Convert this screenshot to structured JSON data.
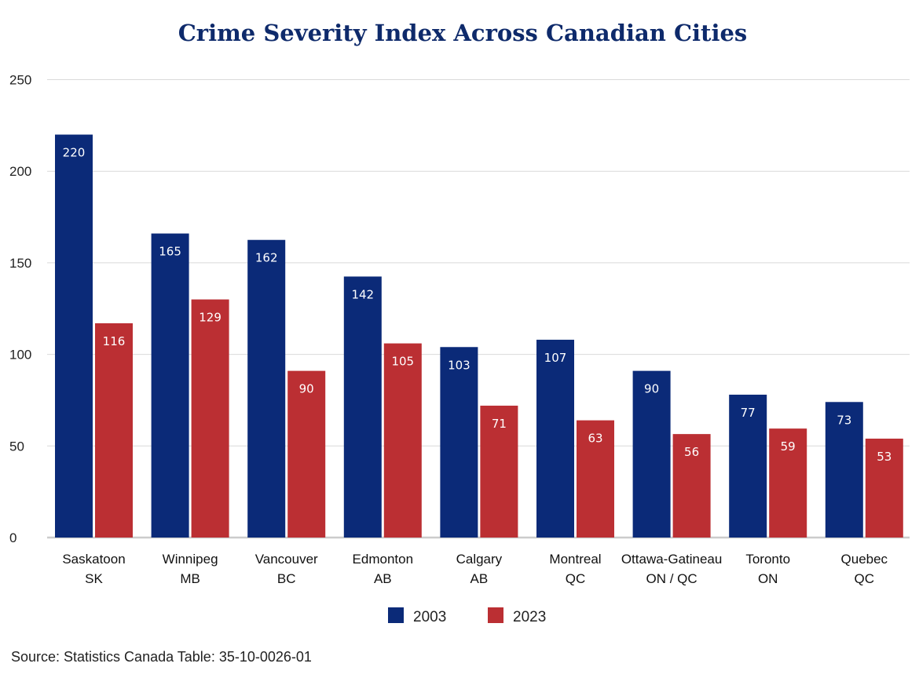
{
  "chart_data": {
    "type": "bar",
    "title": "Crime Severity Index Across Canadian Cities",
    "categories": [
      [
        "Saskatoon",
        "SK"
      ],
      [
        "Winnipeg",
        "MB"
      ],
      [
        "Vancouver",
        "BC"
      ],
      [
        "Edmonton",
        "AB"
      ],
      [
        "Calgary",
        "AB"
      ],
      [
        "Montreal",
        "QC"
      ],
      [
        "Ottawa-Gatineau",
        "ON / QC"
      ],
      [
        "Toronto",
        "ON"
      ],
      [
        "Quebec",
        "QC"
      ]
    ],
    "series": [
      {
        "name": "2003",
        "color": "#0b2a78",
        "values": [
          220,
          165,
          162,
          142,
          103,
          107,
          90,
          77,
          73
        ],
        "bar_heights": [
          220,
          166,
          162.5,
          142.5,
          104,
          108,
          91,
          78,
          74
        ]
      },
      {
        "name": "2023",
        "color": "#bb2f33",
        "values": [
          116,
          129,
          90,
          105,
          71,
          63,
          56,
          59,
          53
        ],
        "bar_heights": [
          117,
          130,
          91,
          106,
          72,
          64,
          56.5,
          59.5,
          54
        ]
      }
    ],
    "yticks": [
      0,
      50,
      100,
      150,
      200,
      250
    ],
    "ylim": [
      0,
      250
    ],
    "grid": true,
    "legend": "bottom-center"
  },
  "source": "Source: Statistics Canada Table: 35-10-0026-01"
}
